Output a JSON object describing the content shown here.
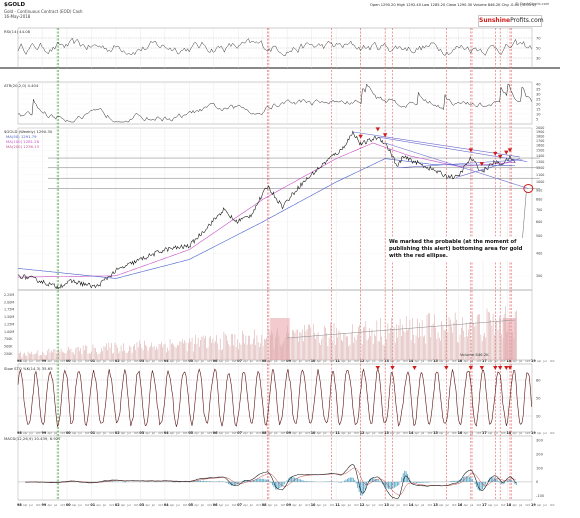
{
  "header": {
    "title": "$GOLD",
    "subtitle_line1": "Gold - Continuous Contract (EOD) Cash",
    "subtitle_line2": "16-May-2018",
    "ohlc": "Open 1290.20  High 1292.40  Low 1285.20  Close 1290.30  Volume 846.2K  Chg -0.40 (-0.03%)",
    "brand_part1": "Sunshine",
    "brand_part2": "Profits.com",
    "copyright": "© StockCharts.com"
  },
  "panels": {
    "rsi_label": "RSI(14) 44.08",
    "atr_label": "ATR(20,2,0) 4.404",
    "price_label": "$GOLD (Weekly) 1290.30",
    "price_legend": [
      "MA(50) 1291.79",
      "MA(100) 1281.26",
      "MA(200) 1236.13"
    ],
    "volume_label": "Volume 846.2K",
    "stochastic_label": "Slow STO %K(14,3) 35.65",
    "macd_label": "MACD(12,26,9) 10.439, 6.927"
  },
  "annotation": {
    "text": "We marked the probable (at the moment of publishing this alert) bottoming area for gold with the red ellipse."
  },
  "colors": {
    "price_line": "#111111",
    "ma_magenta": "#c850c8",
    "ma_blue": "#4a63c8",
    "trend_line": "#6b6bd0",
    "arrow_red": "#d21c1c",
    "ellipse_red": "#d21c1c",
    "volume_bar": "#d8a8a8",
    "volume_highlight": "#e8a0a8",
    "oscillator": "#5a1010",
    "macd_hist": "#2a8fb8",
    "grid": "#e3e3e3",
    "vertical_marker": "#e05050"
  },
  "chart_data": {
    "type": "line",
    "title": "$GOLD",
    "timeframe": "Weekly",
    "x_range": [
      1998,
      2019
    ],
    "price": {
      "yaxis_scale": "log",
      "ylim": [
        250,
        2000
      ],
      "y_tick_labels": [
        "2000",
        "1900",
        "1800",
        "1700",
        "1600",
        "1500",
        "1400",
        "1300",
        "1200",
        "1100",
        "1000",
        "900",
        "800",
        "700",
        "600",
        "500",
        "400",
        "300"
      ],
      "series": [
        {
          "name": "$GOLD",
          "x": [
            1998,
            1998.6,
            1999.6,
            2000.2,
            2001.2,
            2002,
            2003,
            2004,
            2005,
            2006.4,
            2006.9,
            2007.5,
            2008.2,
            2008.8,
            2009.5,
            2010,
            2010.8,
            2011.2,
            2011.7,
            2012,
            2012.7,
            2013,
            2013.3,
            2013.5,
            2013.7,
            2014.2,
            2014.9,
            2015.5,
            2015.95,
            2016.5,
            2016.95,
            2017.5,
            2017.7,
            2017.95,
            2018.1,
            2018.35
          ],
          "values": [
            300,
            290,
            260,
            280,
            260,
            320,
            370,
            420,
            440,
            700,
            600,
            650,
            950,
            730,
            950,
            1100,
            1380,
            1500,
            1900,
            1620,
            1780,
            1650,
            1400,
            1200,
            1380,
            1300,
            1180,
            1080,
            1060,
            1360,
            1140,
            1300,
            1250,
            1320,
            1360,
            1290
          ]
        },
        {
          "name": "MA(50)",
          "x": [
            1998,
            2002,
            2005,
            2008,
            2011,
            2012.5,
            2014,
            2016,
            2018.35
          ],
          "values": [
            295,
            300,
            420,
            800,
            1350,
            1650,
            1400,
            1220,
            1290
          ]
        },
        {
          "name": "MA(200)",
          "x": [
            1998,
            2002,
            2005,
            2008,
            2011,
            2013,
            2015,
            2018.35
          ],
          "values": [
            330,
            290,
            370,
            600,
            1000,
            1350,
            1250,
            1236
          ]
        }
      ],
      "target_zone": {
        "x": 2018.85,
        "y": 920
      }
    },
    "volume": {
      "type": "bar",
      "y_tick_labels": [
        "2.25M",
        "2.00M",
        "1.75M",
        "1.50M",
        "1.25M",
        "1.00M",
        "750K",
        "500K",
        "250K"
      ],
      "highlight_periods": [
        [
          2008.3,
          2009.1
        ],
        [
          2017.8,
          2018.35
        ]
      ]
    },
    "indicators": {
      "rsi": {
        "name": "RSI(14)",
        "last": 44.08,
        "y_tick_labels": [
          "70",
          "50",
          "30"
        ]
      },
      "atr": {
        "name": "ATR(20,2,0)",
        "last": 4.404,
        "y_tick_labels": [
          "40",
          "35",
          "30",
          "25",
          "20",
          "15",
          "10",
          "5"
        ]
      },
      "stochastic": {
        "name": "Slow STO %K",
        "last": 35.65,
        "y_tick_labels": [
          "80",
          "50",
          "20"
        ]
      },
      "macd": {
        "name": "MACD(12,26,9)",
        "values": [
          10.439,
          6.927
        ],
        "y_tick_labels": [
          "300",
          "200",
          "100",
          "0",
          "-100"
        ]
      }
    },
    "x_tick_labels": [
      "98",
      "99",
      "00",
      "01",
      "02",
      "03",
      "04",
      "05",
      "06",
      "07",
      "08",
      "09",
      "10",
      "11",
      "12",
      "13",
      "14",
      "15",
      "16",
      "17",
      "18",
      "19"
    ],
    "x_sub_labels": [
      "Apr",
      "Jul",
      "Oct"
    ],
    "vertical_markers_green": [
      1999.6,
      1999.65
    ],
    "vertical_markers_red": [
      2008.2,
      2008.25,
      2010.8,
      2012.0,
      2013.0,
      2013.3,
      2015.5,
      2016.5,
      2016.55,
      2017.5,
      2017.7,
      2018.1,
      2018.15
    ],
    "top_arrows_price": [
      2012.0,
      2012.7,
      2013.0,
      2016.5,
      2016.95,
      2017.5,
      2017.7,
      2017.95,
      2018.1
    ],
    "top_arrows_stochastic": [
      2012.7,
      2013.3,
      2014.2,
      2015.5,
      2016.5,
      2016.95,
      2017.5,
      2017.7,
      2017.95,
      2018.1
    ]
  }
}
